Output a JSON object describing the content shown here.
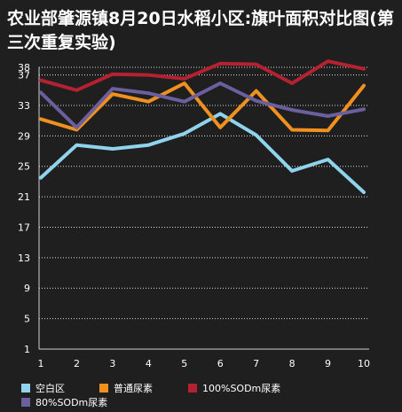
{
  "title": "农业部肇源镇8月20日水稻小区:旗叶面积对比图(第三次重复实验)",
  "chart_data": {
    "type": "line",
    "title": "农业部肇源镇8月20日水稻小区:旗叶面积对比图(第三次重复实验)",
    "xlabel": "",
    "ylabel": "",
    "x": [
      1,
      2,
      3,
      4,
      5,
      6,
      7,
      8,
      9,
      10
    ],
    "yticks": [
      1,
      5,
      9,
      13,
      17,
      21,
      25,
      29,
      33,
      37,
      38
    ],
    "ylim": [
      1,
      38
    ],
    "grid": true,
    "legend_position": "bottom",
    "series": [
      {
        "name": "空白区",
        "color": "#8fd3ec",
        "values": [
          23.5,
          27.8,
          27.3,
          27.8,
          29.3,
          31.9,
          29.1,
          24.4,
          25.9,
          21.6
        ]
      },
      {
        "name": "普通尿素",
        "color": "#f0901e",
        "values": [
          31.2,
          29.8,
          34.5,
          33.5,
          35.9,
          30.1,
          34.9,
          29.8,
          29.7,
          35.6
        ]
      },
      {
        "name": "100%SODm尿素",
        "color": "#b42130",
        "values": [
          36.3,
          35.0,
          37.1,
          37.0,
          36.5,
          38.5,
          38.4,
          35.9,
          38.8,
          37.8
        ]
      },
      {
        "name": "80%SODm尿素",
        "color": "#6b5fa0",
        "values": [
          34.7,
          30.1,
          35.2,
          34.6,
          33.5,
          35.9,
          33.6,
          32.4,
          31.6,
          32.5
        ]
      }
    ]
  }
}
